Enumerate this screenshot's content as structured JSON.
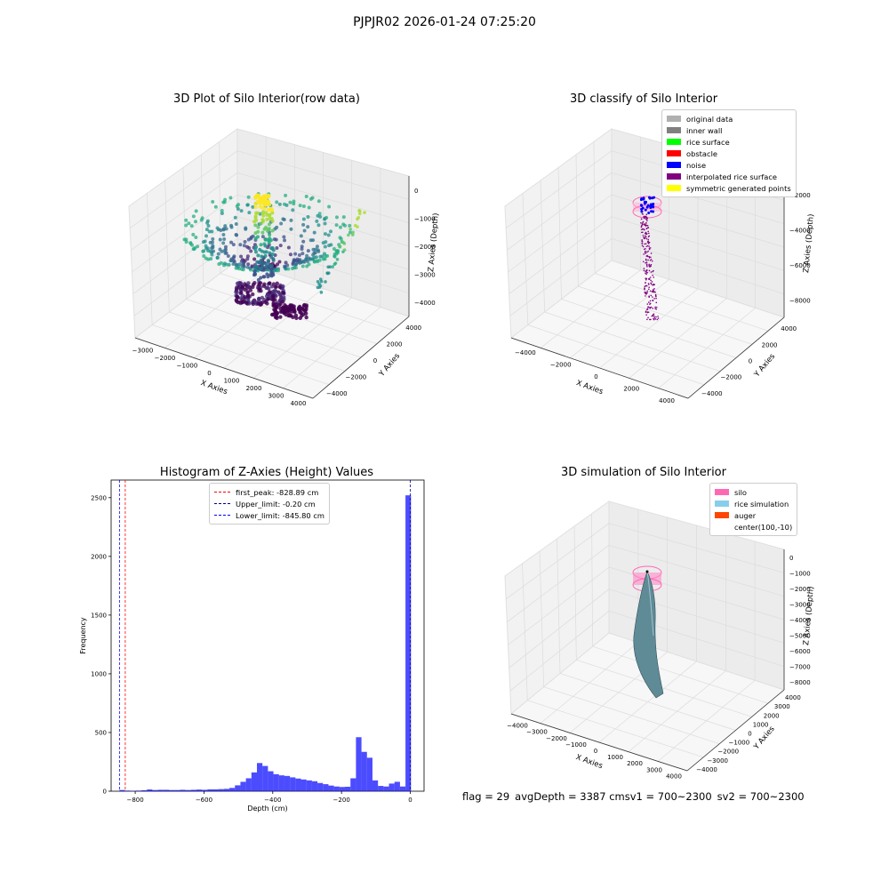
{
  "suptitle": "PJPJR02 2026-01-24 07:25:20",
  "footer": {
    "flag": "flag = 29",
    "avg": "avgDepth = 3387 cmsv1 = 700~2300",
    "sv2": "sv2 = 700~2300"
  },
  "chart_data": [
    {
      "type": "scatter",
      "title": "3D Plot of Silo Interior(row data)",
      "xlabel": "X Axies",
      "ylabel": "Y Axies",
      "zlabel": "Z Axies (Depth)",
      "x_ticks": [
        "−3000",
        "−2000",
        "−1000",
        "0",
        "1000",
        "2000",
        "3000",
        "4000"
      ],
      "y_ticks": [
        "−4000",
        "−2000",
        "0",
        "2000",
        "4000"
      ],
      "z_ticks": [
        "−4000",
        "−3000",
        "−2000",
        "−1000",
        "0"
      ],
      "colormap": "viridis"
    },
    {
      "type": "scatter",
      "title": "3D classify of Silo Interior",
      "xlabel": "X Axies",
      "ylabel": "Y Axies",
      "zlabel": "Z Axies (Depth)",
      "x_ticks": [
        "−4000",
        "−2000",
        "0",
        "2000",
        "4000"
      ],
      "y_ticks": [
        "−4000",
        "−2000",
        "0",
        "2000",
        "4000"
      ],
      "z_ticks": [
        "−8000",
        "−6000",
        "−4000",
        "−2000"
      ],
      "legend": [
        {
          "name": "original data",
          "color": "#b0b0b0"
        },
        {
          "name": "inner wall",
          "color": "#808080"
        },
        {
          "name": "rice surface",
          "color": "#00ff00"
        },
        {
          "name": "obstacle",
          "color": "#ff0000"
        },
        {
          "name": "noise",
          "color": "#0000ff"
        },
        {
          "name": "interpolated rice surface",
          "color": "#800080"
        },
        {
          "name": "symmetric generated points",
          "color": "#ffff00"
        }
      ]
    },
    {
      "type": "bar",
      "title": "Histogram of Z-Axies (Height) Values",
      "xlabel": "Depth (cm)",
      "ylabel": "Frequency",
      "xlim": [
        -870,
        40
      ],
      "ylim": [
        0,
        2650
      ],
      "x_ticks": [
        {
          "v": -800,
          "label": "−800"
        },
        {
          "v": -600,
          "label": "−600"
        },
        {
          "v": -400,
          "label": "−400"
        },
        {
          "v": -200,
          "label": "−200"
        },
        {
          "v": 0,
          "label": "0"
        }
      ],
      "y_ticks": [
        0,
        500,
        1000,
        1500,
        2000,
        2500
      ],
      "bar_color": "#0000ff",
      "bin_width": 16,
      "bins_left": [
        -846,
        -830,
        -814,
        -798,
        -782,
        -766,
        -750,
        -734,
        -718,
        -702,
        -686,
        -670,
        -654,
        -638,
        -622,
        -606,
        -590,
        -574,
        -558,
        -542,
        -526,
        -510,
        -494,
        -478,
        -462,
        -446,
        -430,
        -414,
        -398,
        -382,
        -366,
        -350,
        -334,
        -318,
        -302,
        -286,
        -270,
        -254,
        -238,
        -222,
        -206,
        -190,
        -174,
        -158,
        -142,
        -126,
        -110,
        -94,
        -78,
        -62,
        -46,
        -30,
        -14
      ],
      "counts": [
        10,
        5,
        3,
        5,
        8,
        15,
        10,
        12,
        12,
        10,
        10,
        12,
        10,
        12,
        14,
        12,
        16,
        16,
        18,
        20,
        28,
        50,
        80,
        110,
        160,
        240,
        215,
        170,
        145,
        135,
        130,
        118,
        108,
        100,
        92,
        85,
        70,
        60,
        48,
        40,
        36,
        38,
        110,
        460,
        335,
        285,
        92,
        45,
        40,
        65,
        80,
        40,
        2520
      ],
      "lines": [
        {
          "name": "first_peak: -828.89 cm",
          "value": -828.89,
          "color": "#ff0000"
        },
        {
          "name": "Upper_limit: -0.20 cm",
          "value": -0.2,
          "color": "#00008b"
        },
        {
          "name": "Lower_limit: -845.80 cm",
          "value": -845.8,
          "color": "#0000ff"
        }
      ]
    },
    {
      "type": "area",
      "title": "3D simulation of Silo Interior",
      "xlabel": "X Axies",
      "ylabel": "Y Axies",
      "zlabel": "Z Axies (Depth)",
      "x_ticks": [
        "−4000",
        "−3000",
        "−2000",
        "−1000",
        "0",
        "1000",
        "2000",
        "3000",
        "4000"
      ],
      "y_ticks": [
        "−4000",
        "−3000",
        "−2000",
        "−1000",
        "0",
        "1000",
        "2000",
        "3000",
        "4000"
      ],
      "z_ticks": [
        "−8000",
        "−7000",
        "−6000",
        "−5000",
        "−4000",
        "−3000",
        "−2000",
        "−1000",
        "0"
      ],
      "legend": [
        {
          "name": "silo",
          "color": "#ff69b4"
        },
        {
          "name": "rice simulation",
          "color": "#87ceeb"
        },
        {
          "name": "auger",
          "color": "#ff4500"
        },
        {
          "name": "center(100,-10)",
          "color": ""
        }
      ]
    }
  ]
}
